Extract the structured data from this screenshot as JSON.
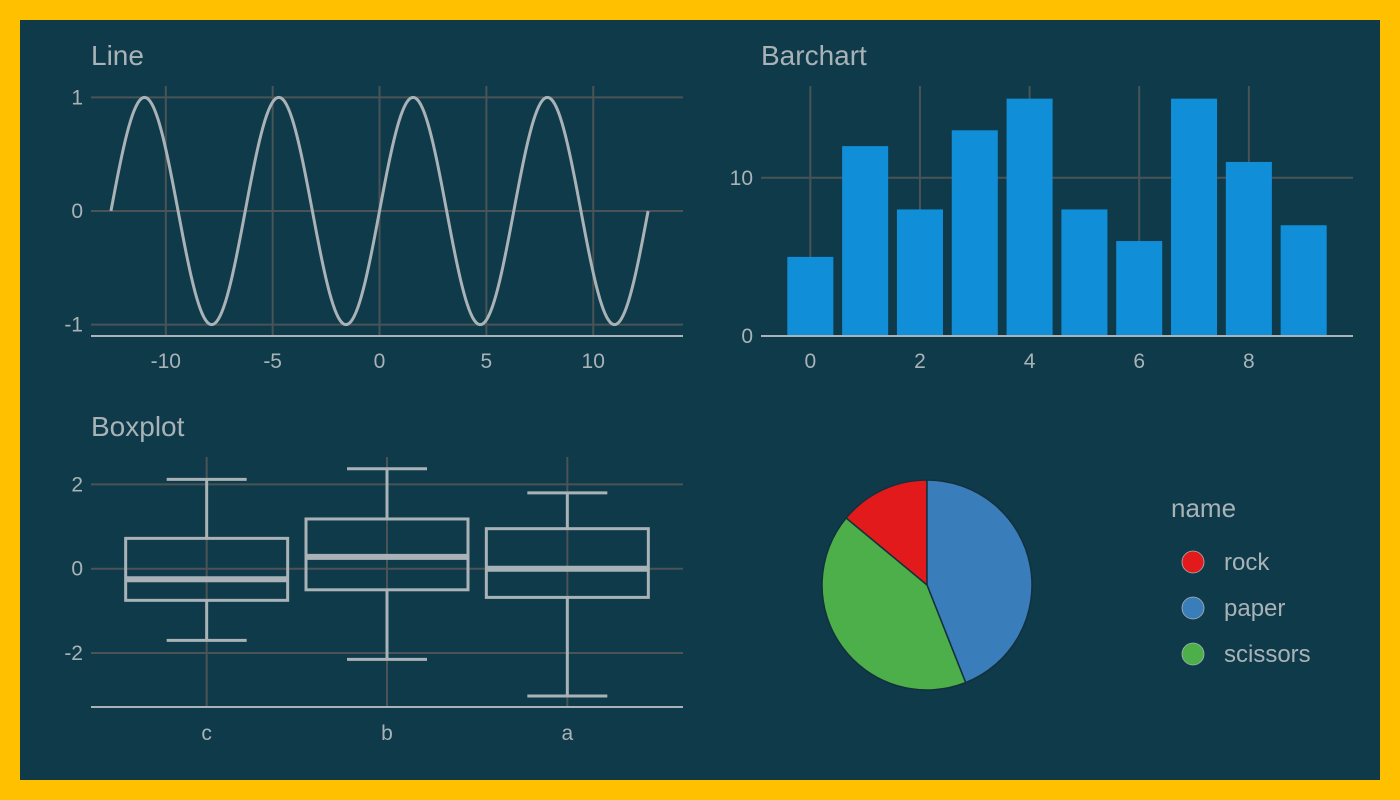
{
  "colors": {
    "border": "#ffc000",
    "background": "#0e3a4a",
    "text": "#a9b3b7",
    "grid": "#4a5356",
    "line": "#a9b3b7",
    "bar": "#118ed8"
  },
  "chart_data": [
    {
      "type": "line",
      "title": "Line",
      "function": "sin",
      "x_range": [
        -12.566,
        12.566
      ],
      "xticks": [
        -10,
        -5,
        0,
        5,
        10
      ],
      "yticks": [
        -1,
        0,
        1
      ],
      "xlim": [
        -13.5,
        14.2
      ],
      "ylim": [
        -1.1,
        1.1
      ]
    },
    {
      "type": "bar",
      "title": "Barchart",
      "x": [
        0,
        1,
        2,
        3,
        4,
        5,
        6,
        7,
        8,
        9
      ],
      "values": [
        5,
        12,
        8,
        13,
        15,
        8,
        6,
        15,
        11,
        7
      ],
      "xticks": [
        0,
        2,
        4,
        6,
        8
      ],
      "yticks": [
        0,
        10
      ],
      "xlim": [
        -0.9,
        9.9
      ],
      "ylim": [
        0,
        15.8
      ]
    },
    {
      "type": "box",
      "title": "Boxplot",
      "categories": [
        "c",
        "b",
        "a"
      ],
      "boxes": [
        {
          "whisker_low": -1.7,
          "q1": -0.75,
          "median": -0.25,
          "q3": 0.72,
          "whisker_high": 2.12
        },
        {
          "whisker_low": -2.15,
          "q1": -0.5,
          "median": 0.28,
          "q3": 1.18,
          "whisker_high": 2.37
        },
        {
          "whisker_low": -3.02,
          "q1": -0.68,
          "median": 0.0,
          "q3": 0.95,
          "whisker_high": 1.8
        }
      ],
      "yticks": [
        -2,
        0,
        2
      ],
      "ylim": [
        -3.28,
        2.65
      ]
    },
    {
      "type": "pie",
      "legend_title": "name",
      "legend_position": "right",
      "slices": [
        {
          "label": "rock",
          "value": 14,
          "color": "#e31a1c"
        },
        {
          "label": "paper",
          "value": 44,
          "color": "#3a7dbb"
        },
        {
          "label": "scissors",
          "value": 42,
          "color": "#4daf4a"
        }
      ]
    }
  ]
}
